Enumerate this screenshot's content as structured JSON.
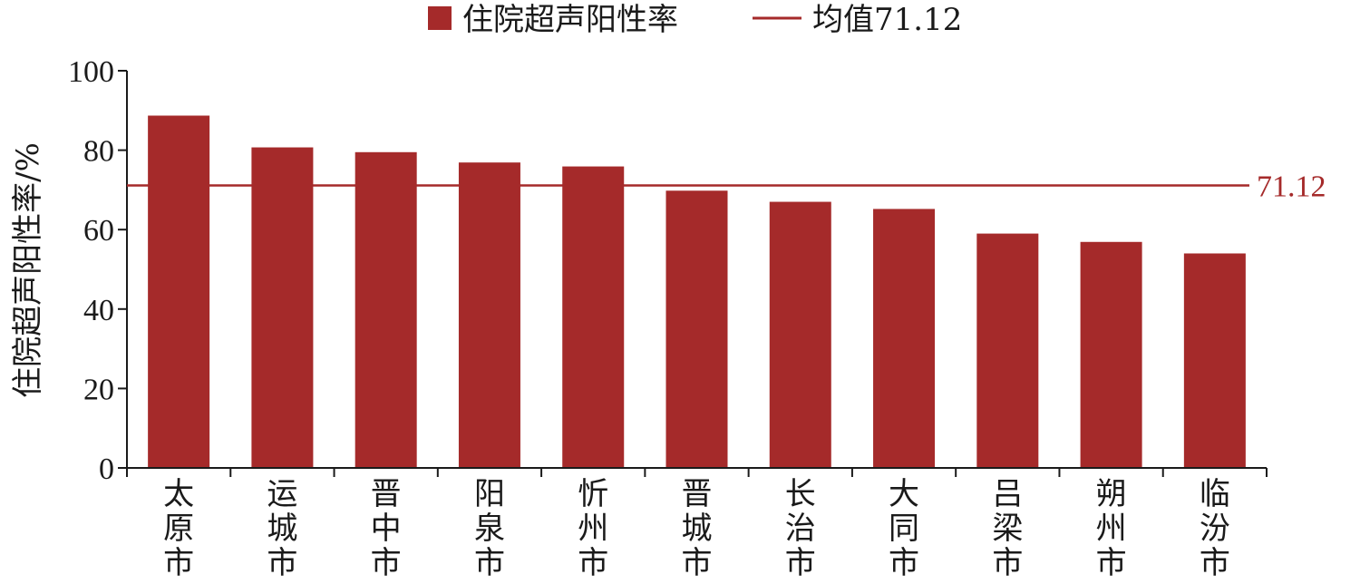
{
  "chart_data": {
    "type": "bar",
    "categories": [
      "太原市",
      "运城市",
      "晋中市",
      "阳泉市",
      "忻州市",
      "晋城市",
      "长治市",
      "大同市",
      "吕梁市",
      "朔州市",
      "临汾市"
    ],
    "series": [
      {
        "name": "住院超声阳性率",
        "values": [
          88.7,
          80.7,
          79.5,
          76.9,
          75.9,
          69.8,
          67.0,
          65.2,
          59.0,
          56.9,
          54.0
        ],
        "color": "#a52a2a"
      }
    ],
    "reference_line": {
      "label": "均值71.12",
      "value": 71.12,
      "value_label": "71.12",
      "color": "#a52a2a"
    },
    "ylabel": "住院超声阳性率/%",
    "ylim": [
      0,
      100
    ],
    "yticks": [
      0,
      20,
      40,
      60,
      80,
      100
    ],
    "grid": false,
    "legend_position": "top-center"
  }
}
